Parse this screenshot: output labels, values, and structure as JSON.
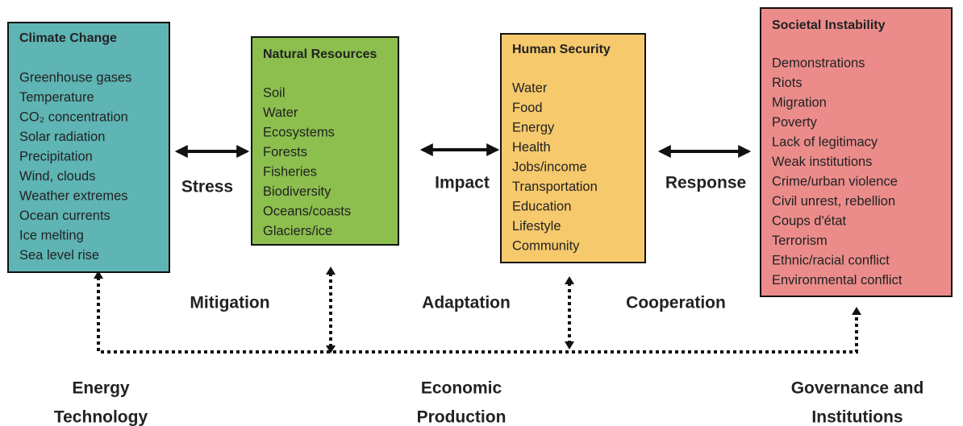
{
  "boxes": [
    {
      "title": "Climate Change",
      "items": [
        "Greenhouse gases",
        "Temperature",
        "CO₂ concentration",
        "Solar radiation",
        "Precipitation",
        "Wind, clouds",
        "Weather extremes",
        "Ocean currents",
        "Ice melting",
        "Sea level rise"
      ]
    },
    {
      "title": "Natural Resources",
      "items": [
        "Soil",
        "Water",
        "Ecosystems",
        "Forests",
        "Fisheries",
        "Biodiversity",
        "Oceans/coasts",
        "Glaciers/ice"
      ]
    },
    {
      "title": "Human Security",
      "items": [
        "Water",
        "Food",
        "Energy",
        "Health",
        "Jobs/income",
        "Transportation",
        "Education",
        "Lifestyle",
        "Community"
      ]
    },
    {
      "title": "Societal Instability",
      "items": [
        "Demonstrations",
        "Riots",
        "Migration",
        "Poverty",
        "Lack of legitimacy",
        "Weak institutions",
        "Crime/urban violence",
        "Civil unrest, rebellion",
        "Coups d'état",
        "Terrorism",
        "Ethnic/racial conflict",
        "Environmental conflict"
      ]
    }
  ],
  "links": [
    "Stress",
    "Impact",
    "Response"
  ],
  "actions": [
    "Mitigation",
    "Adaptation",
    "Cooperation"
  ],
  "domains": [
    [
      "Energy",
      "Technology"
    ],
    [
      "Economic",
      "Production"
    ],
    [
      "Governance and",
      "Institutions"
    ]
  ]
}
